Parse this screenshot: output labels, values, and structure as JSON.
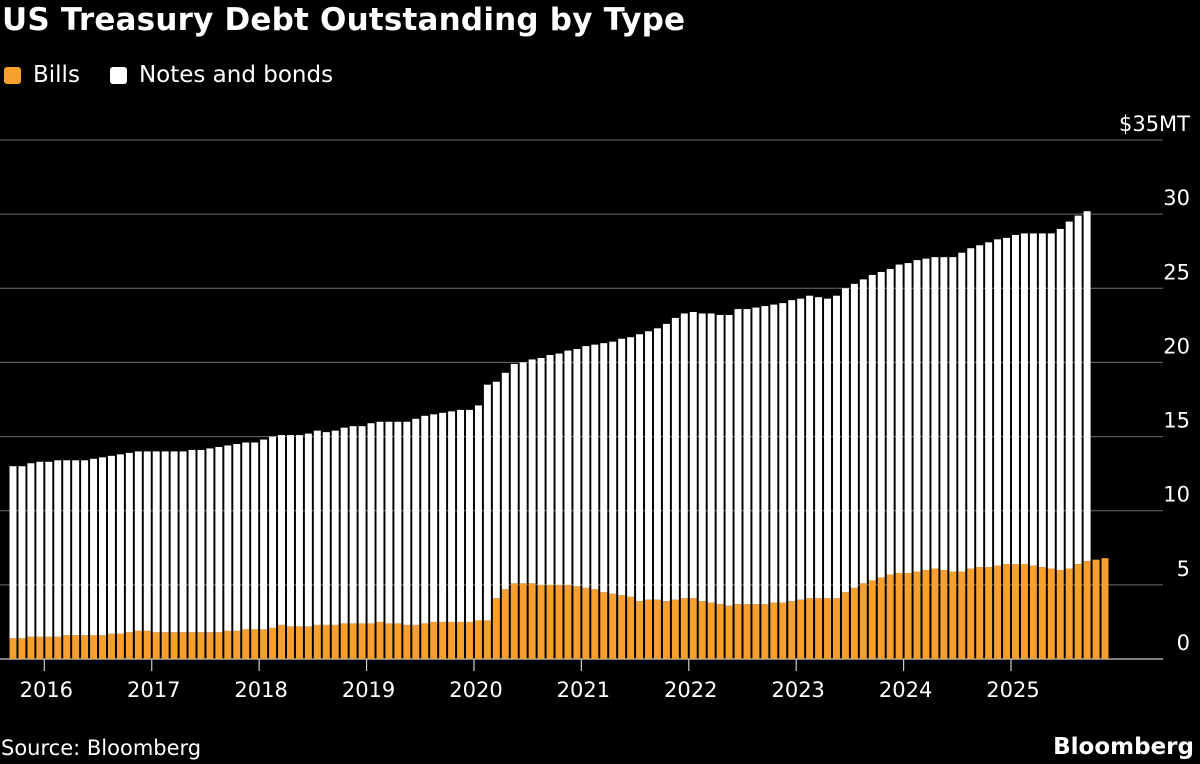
{
  "title": "US Treasury Debt Outstanding by Type",
  "source": "Source: Bloomberg",
  "logo": "Bloomberg",
  "colors": {
    "bills": "#f7a030",
    "notes": "#ffffff",
    "background": "#000000",
    "grid": "#6e6e6e",
    "text": "#ffffff"
  },
  "legend": [
    {
      "label": "Bills",
      "color": "#f7a030"
    },
    {
      "label": "Notes and bonds",
      "color": "#ffffff"
    }
  ],
  "chart_data": {
    "type": "bar",
    "stacked": true,
    "title": "US Treasury Debt Outstanding by Type",
    "y_unit_label": "$35MT",
    "ylim": [
      0,
      35
    ],
    "y_ticks": [
      0,
      5,
      10,
      15,
      20,
      25,
      30,
      35
    ],
    "y_tick_labels": [
      "0",
      "5",
      "10",
      "15",
      "20",
      "25",
      "30",
      "$35MT"
    ],
    "y_axis_side": "right",
    "grid": true,
    "legend_position": "top-left",
    "x_tick_labels": [
      "2016",
      "2017",
      "2018",
      "2019",
      "2020",
      "2021",
      "2022",
      "2023",
      "2024",
      "2025"
    ],
    "x_start": "2015-09",
    "x_end": "2025-10",
    "series": [
      {
        "name": "Bills",
        "values": [
          1.4,
          1.4,
          1.5,
          1.5,
          1.5,
          1.5,
          1.6,
          1.6,
          1.6,
          1.6,
          1.6,
          1.7,
          1.7,
          1.8,
          1.9,
          1.9,
          1.8,
          1.8,
          1.8,
          1.8,
          1.8,
          1.8,
          1.8,
          1.8,
          1.9,
          1.9,
          2.0,
          2.0,
          2.0,
          2.1,
          2.3,
          2.2,
          2.2,
          2.2,
          2.3,
          2.3,
          2.3,
          2.4,
          2.4,
          2.4,
          2.4,
          2.5,
          2.4,
          2.4,
          2.3,
          2.3,
          2.4,
          2.5,
          2.5,
          2.5,
          2.5,
          2.5,
          2.6,
          2.6,
          4.1,
          4.7,
          5.1,
          5.1,
          5.1,
          5.0,
          5.0,
          5.0,
          5.0,
          4.9,
          4.8,
          4.7,
          4.5,
          4.4,
          4.3,
          4.2,
          3.9,
          4.0,
          4.0,
          3.9,
          4.0,
          4.1,
          4.1,
          3.9,
          3.8,
          3.7,
          3.6,
          3.7,
          3.7,
          3.7,
          3.7,
          3.8,
          3.8,
          3.9,
          4.0,
          4.1,
          4.1,
          4.1,
          4.1,
          4.5,
          4.8,
          5.1,
          5.3,
          5.5,
          5.7,
          5.8,
          5.8,
          5.9,
          6.0,
          6.1,
          6.0,
          5.9,
          5.9,
          6.1,
          6.2,
          6.2,
          6.3,
          6.4,
          6.4,
          6.4,
          6.3,
          6.2,
          6.1,
          6.0,
          6.1,
          6.4,
          6.6,
          6.7,
          6.8
        ]
      },
      {
        "name": "Notes and bonds",
        "values": [
          11.6,
          11.6,
          11.7,
          11.8,
          11.8,
          11.9,
          11.8,
          11.8,
          11.8,
          11.9,
          12.0,
          12.0,
          12.1,
          12.1,
          12.1,
          12.1,
          12.2,
          12.2,
          12.2,
          12.2,
          12.3,
          12.3,
          12.4,
          12.5,
          12.5,
          12.6,
          12.6,
          12.6,
          12.8,
          12.9,
          12.8,
          12.9,
          12.9,
          13.0,
          13.1,
          13.0,
          13.1,
          13.2,
          13.3,
          13.3,
          13.5,
          13.5,
          13.6,
          13.6,
          13.7,
          13.9,
          14.0,
          14.0,
          14.1,
          14.2,
          14.3,
          14.3,
          14.5,
          15.9,
          14.6,
          14.6,
          14.8,
          14.9,
          15.1,
          15.3,
          15.5,
          15.6,
          15.8,
          16.0,
          16.3,
          16.5,
          16.8,
          17.0,
          17.3,
          17.5,
          18.0,
          18.1,
          18.3,
          18.7,
          19.0,
          19.2,
          19.3,
          19.4,
          19.5,
          19.5,
          19.6,
          19.9,
          19.9,
          20.0,
          20.1,
          20.1,
          20.2,
          20.3,
          20.3,
          20.4,
          20.3,
          20.2,
          20.4,
          20.5,
          20.5,
          20.5,
          20.6,
          20.6,
          20.6,
          20.8,
          20.9,
          21.0,
          21.0,
          21.0,
          21.1,
          21.2,
          21.5,
          21.6,
          21.7,
          21.9,
          22.0,
          22.0,
          22.2,
          22.3,
          22.4,
          22.5,
          22.6,
          23.0,
          23.4,
          23.5,
          23.6
        ]
      }
    ]
  }
}
